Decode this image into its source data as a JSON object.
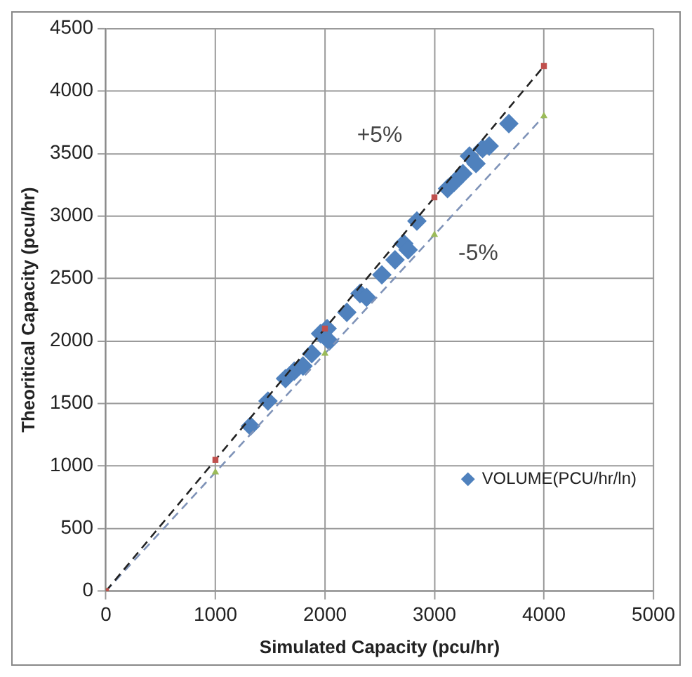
{
  "chart_data": {
    "type": "scatter",
    "xlabel": "Simulated Capacity (pcu/hr)",
    "ylabel": "Theoritical Capacity (pcu/hr)",
    "xlim": [
      0,
      5000
    ],
    "xticks": [
      0,
      1000,
      2000,
      3000,
      4000,
      5000
    ],
    "ylim": [
      0,
      4500
    ],
    "yticks": [
      0,
      500,
      1000,
      1500,
      2000,
      2500,
      3000,
      3500,
      4000,
      4500
    ],
    "grid": true,
    "legend": "bottom right",
    "annotations": [
      "+5%",
      "-5%"
    ],
    "series": [
      {
        "type": "line",
        "color": "#222222",
        "line_style": "dashed",
        "marker": "square",
        "x": [
          0,
          1000,
          2000,
          3000,
          4000
        ],
        "values": [
          0,
          1050,
          2100,
          3150,
          4200
        ]
      },
      {
        "type": "line",
        "color": "#7f93b8",
        "line_style": "dashed",
        "marker": "triangle",
        "x": [
          0,
          1000,
          2000,
          3000,
          4000
        ],
        "values": [
          0,
          950,
          1900,
          2850,
          3800
        ]
      },
      {
        "type": "scatter",
        "name": "VOLUME(PCU/hr/ln)",
        "color": "#4f81bd",
        "marker": "diamond",
        "x": [
          1320,
          1480,
          1640,
          1720,
          1800,
          1880,
          1960,
          2020,
          2040,
          2200,
          2320,
          2380,
          2520,
          2640,
          2720,
          2760,
          2840,
          3120,
          3180,
          3260,
          3320,
          3380,
          3440,
          3500,
          3680
        ],
        "values": [
          1320,
          1520,
          1700,
          1760,
          1800,
          1900,
          2060,
          2100,
          2000,
          2230,
          2380,
          2350,
          2530,
          2650,
          2780,
          2730,
          2960,
          3220,
          3270,
          3340,
          3480,
          3420,
          3540,
          3560,
          3740
        ]
      }
    ]
  }
}
